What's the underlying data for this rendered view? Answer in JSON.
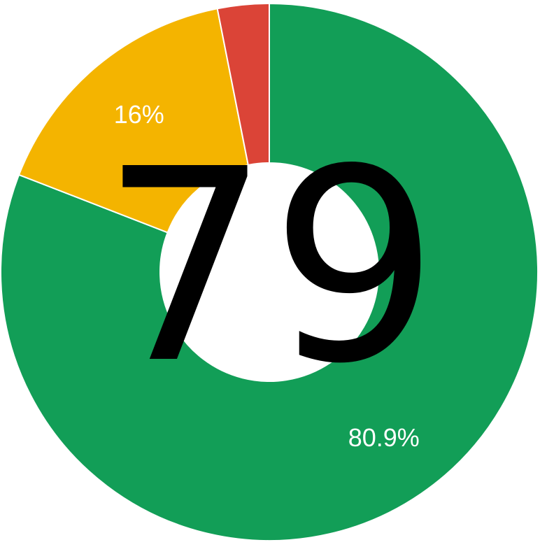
{
  "chart_data": {
    "type": "pie",
    "donut": true,
    "center_value": "79",
    "slices": [
      {
        "value": 80.9,
        "label": "80.9%",
        "color": "#129e57"
      },
      {
        "value": 16.0,
        "label": "16%",
        "color": "#f4b400"
      },
      {
        "value": 3.1,
        "label": "",
        "color": "#db4437"
      }
    ],
    "legend": "none"
  }
}
